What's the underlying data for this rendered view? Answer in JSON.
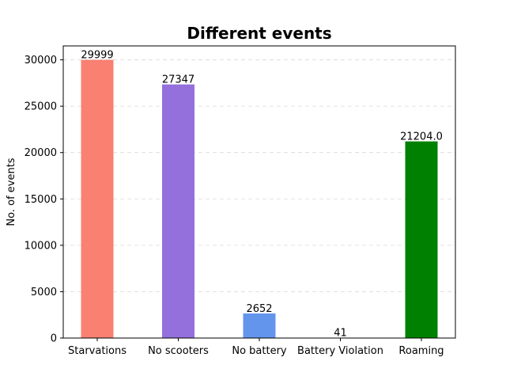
{
  "chart_data": {
    "type": "bar",
    "title": "Different events",
    "xlabel": "",
    "ylabel": "No. of events",
    "categories": [
      "Starvations",
      "No scooters",
      "No battery",
      "Battery Violation",
      "Roaming"
    ],
    "values": [
      29999,
      27347,
      2652,
      41,
      21204.0
    ],
    "data_labels": [
      "29999",
      "27347",
      "2652",
      "41",
      "21204.0"
    ],
    "colors": [
      "#fa8072",
      "#9370db",
      "#6495ed",
      "#808080",
      "#008000"
    ],
    "ylim": [
      0,
      31499
    ],
    "yticks": [
      0,
      5000,
      10000,
      15000,
      20000,
      25000,
      30000
    ],
    "ytick_labels": [
      "0",
      "5000",
      "10000",
      "15000",
      "20000",
      "25000",
      "30000"
    ],
    "grid": "horizontal dashed",
    "legend": "none"
  }
}
